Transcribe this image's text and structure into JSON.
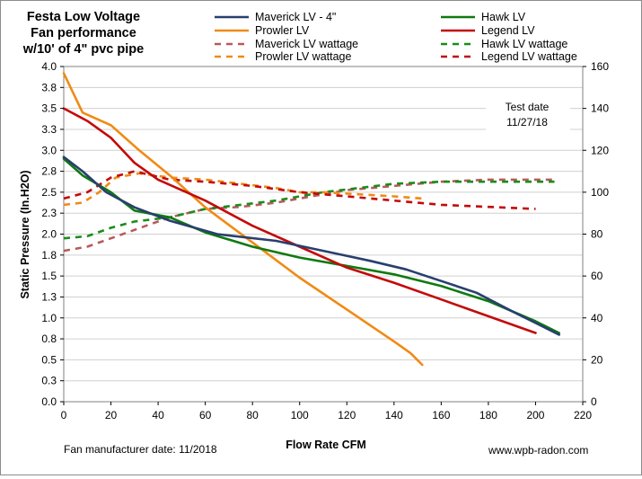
{
  "chart_data": {
    "type": "line",
    "title": [
      "Festa Low Voltage",
      "Fan  performance",
      "w/10' of 4\" pvc pipe"
    ],
    "xlabel": "Flow Rate  CFM",
    "ylabel": "Static Pressure (In.H2O)",
    "xlim": [
      0,
      220
    ],
    "xticks": [
      0,
      20,
      40,
      60,
      80,
      100,
      120,
      140,
      160,
      180,
      200,
      220
    ],
    "ylim": [
      0,
      4.0
    ],
    "yticks": [
      "0.0",
      "0.3",
      "0.5",
      "0.8",
      "1.0",
      "1.3",
      "1.5",
      "1.8",
      "2.0",
      "2.3",
      "2.5",
      "2.8",
      "3.0",
      "3.3",
      "3.5",
      "3.8",
      "4.0"
    ],
    "y2lim": [
      0,
      160
    ],
    "y2ticks": [
      0,
      20,
      40,
      60,
      80,
      100,
      120,
      140,
      160
    ],
    "grid": "horizontal",
    "legend_position": "top",
    "annotation": [
      "Test date",
      "11/27/18"
    ],
    "footer_left": "Fan manufacturer date: 11/2018",
    "footer_right": "www.wpb-radon.com",
    "series": [
      {
        "name": "Maverick LV  -  4\"",
        "color": "#283f6e",
        "style": "solid",
        "axis": "left",
        "x": [
          0,
          8,
          18,
          30,
          45,
          65,
          90,
          110,
          130,
          145,
          160,
          175,
          190,
          200,
          210
        ],
        "y": [
          2.92,
          2.75,
          2.5,
          2.32,
          2.16,
          2.0,
          1.92,
          1.8,
          1.68,
          1.58,
          1.44,
          1.3,
          1.08,
          0.94,
          0.8
        ]
      },
      {
        "name": "Hawk LV",
        "color": "#0f7a10",
        "style": "solid",
        "axis": "left",
        "x": [
          0,
          8,
          20,
          30,
          45,
          60,
          80,
          100,
          120,
          140,
          160,
          180,
          200,
          210
        ],
        "y": [
          2.9,
          2.7,
          2.5,
          2.28,
          2.2,
          2.02,
          1.85,
          1.72,
          1.62,
          1.52,
          1.38,
          1.2,
          0.96,
          0.82
        ]
      },
      {
        "name": "Prowler LV",
        "color": "#f08a14",
        "style": "solid",
        "axis": "left",
        "x": [
          0,
          8,
          20,
          32,
          45,
          60,
          80,
          100,
          120,
          140,
          147,
          152
        ],
        "y": [
          3.92,
          3.45,
          3.3,
          3.0,
          2.7,
          2.32,
          1.9,
          1.48,
          1.1,
          0.72,
          0.58,
          0.44
        ]
      },
      {
        "name": "Legend LV",
        "color": "#c30a0a",
        "style": "solid",
        "axis": "left",
        "x": [
          0,
          10,
          20,
          30,
          40,
          60,
          80,
          100,
          120,
          140,
          160,
          180,
          200
        ],
        "y": [
          3.5,
          3.35,
          3.15,
          2.85,
          2.65,
          2.4,
          2.1,
          1.85,
          1.6,
          1.42,
          1.22,
          1.02,
          0.82
        ]
      },
      {
        "name": "Maverick LV wattage",
        "color": "#b85a5a",
        "style": "dashed",
        "axis": "right",
        "x": [
          0,
          10,
          20,
          30,
          45,
          60,
          75,
          90,
          105,
          120,
          140,
          160,
          180,
          200,
          208
        ],
        "y": [
          72,
          74,
          78,
          82,
          88,
          92,
          93,
          95,
          98,
          101,
          103,
          105,
          106,
          106,
          106
        ]
      },
      {
        "name": "Hawk LV wattage",
        "color": "#1a8c1a",
        "style": "dashed",
        "axis": "right",
        "x": [
          0,
          10,
          20,
          30,
          45,
          60,
          75,
          90,
          100,
          110,
          125,
          140,
          160,
          180,
          200,
          208
        ],
        "y": [
          78,
          79,
          83,
          86,
          88,
          92,
          94,
          96,
          98,
          100,
          102,
          104,
          105,
          105,
          105,
          105
        ]
      },
      {
        "name": "Prowler LV wattage",
        "color": "#f08a14",
        "style": "dashed",
        "axis": "right",
        "x": [
          0,
          8,
          15,
          22,
          32,
          45,
          60,
          75,
          90,
          100,
          110,
          125,
          140,
          152
        ],
        "y": [
          94,
          95,
          100,
          107,
          109,
          107,
          106,
          104,
          102,
          100,
          100,
          99,
          98,
          97
        ]
      },
      {
        "name": "Legend LV wattage",
        "color": "#c30a0a",
        "style": "dashed",
        "axis": "right",
        "x": [
          0,
          10,
          20,
          30,
          45,
          60,
          80,
          100,
          120,
          140,
          160,
          180,
          200
        ],
        "y": [
          97,
          100,
          107,
          110,
          106,
          105,
          103,
          100,
          98,
          96,
          94,
          93,
          92
        ]
      }
    ]
  }
}
